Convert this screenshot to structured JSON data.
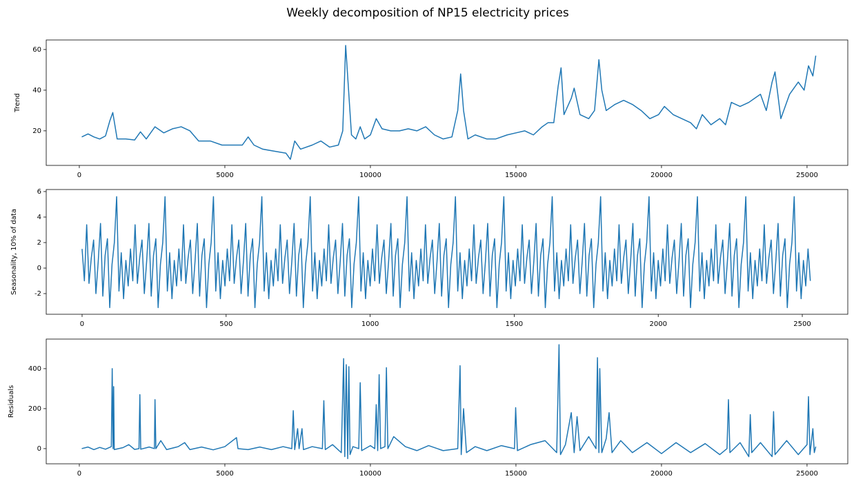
{
  "title": "Weekly decomposition of NP15 electricity prices",
  "chart_data": [
    {
      "type": "line",
      "ylabel": "Trend",
      "color": "#1f77b4",
      "xlim": [
        -1137,
        26400
      ],
      "ylim": [
        3,
        64.7
      ],
      "xticks": [
        0,
        5000,
        10000,
        15000,
        20000,
        25000
      ],
      "yticks": [
        20,
        40,
        60
      ],
      "x": [
        84,
        300,
        500,
        700,
        900,
        1050,
        1150,
        1300,
        1600,
        1900,
        2100,
        2300,
        2600,
        2900,
        3200,
        3500,
        3800,
        4100,
        4500,
        4900,
        5300,
        5600,
        5800,
        6000,
        6300,
        6700,
        7100,
        7250,
        7400,
        7600,
        8000,
        8300,
        8600,
        8900,
        9050,
        9150,
        9250,
        9350,
        9500,
        9650,
        9800,
        10000,
        10200,
        10400,
        10700,
        11000,
        11300,
        11600,
        11900,
        12200,
        12500,
        12800,
        13000,
        13100,
        13200,
        13350,
        13600,
        14000,
        14300,
        14700,
        15000,
        15300,
        15600,
        15900,
        16100,
        16300,
        16450,
        16550,
        16650,
        16900,
        17000,
        17200,
        17500,
        17700,
        17850,
        17950,
        18100,
        18400,
        18700,
        19000,
        19300,
        19600,
        19900,
        20100,
        20400,
        20700,
        21000,
        21200,
        21400,
        21700,
        22000,
        22200,
        22400,
        22700,
        23000,
        23200,
        23400,
        23600,
        23800,
        23900,
        24100,
        24400,
        24700,
        24900,
        25050,
        25200,
        25300
      ],
      "values": [
        17,
        18.5,
        17,
        16,
        17.5,
        25,
        29,
        16,
        16,
        15.5,
        19.5,
        16,
        22,
        19,
        21,
        22,
        20,
        15,
        15,
        13,
        13,
        13,
        17,
        13,
        11,
        10,
        9,
        6,
        15,
        11,
        13,
        15,
        12,
        13,
        20,
        62,
        40,
        18,
        16,
        22,
        16,
        18,
        26,
        21,
        20,
        20,
        21,
        20,
        22,
        18,
        16,
        17,
        30,
        48,
        30,
        16,
        18,
        16,
        16,
        18,
        19,
        20,
        18,
        22,
        24,
        24,
        42,
        51,
        28,
        36,
        41,
        28,
        26,
        30,
        55,
        40,
        30,
        33,
        35,
        33,
        30,
        26,
        28,
        32,
        28,
        26,
        24,
        21,
        28,
        23,
        26,
        23,
        34,
        32,
        34,
        36,
        38,
        30,
        44,
        49,
        26,
        38,
        44,
        40,
        52,
        47,
        57
      ]
    },
    {
      "type": "line",
      "ylabel": "Seasonality, 10% of data",
      "color": "#1f77b4",
      "xlim": [
        -124.5,
        2658
      ],
      "ylim": [
        -3.62,
        6.16
      ],
      "xticks": [
        0,
        500,
        1000,
        1500,
        2000,
        2500
      ],
      "yticks": [
        -2,
        0,
        2,
        4,
        6
      ],
      "x": [
        0,
        8,
        16,
        24,
        32,
        40,
        48,
        56,
        64,
        72,
        80,
        88,
        96,
        104,
        112,
        120,
        128,
        136,
        144,
        152,
        160,
        168,
        176,
        184,
        192,
        200,
        208,
        216,
        224,
        232,
        240,
        248,
        256,
        264,
        272,
        280,
        288,
        296,
        304,
        312,
        320,
        328,
        336,
        344,
        352,
        360,
        368,
        376,
        384,
        392,
        400,
        408,
        416,
        424,
        432,
        440,
        448,
        456,
        464,
        472,
        480,
        488,
        496,
        504,
        512,
        520,
        528,
        536,
        544,
        552,
        560,
        568,
        576,
        584,
        592,
        600,
        608,
        616,
        624,
        632,
        640,
        648,
        656,
        664,
        672,
        680,
        688,
        696,
        704,
        712,
        720,
        728,
        736,
        744,
        752,
        760,
        768,
        776,
        784,
        792,
        800,
        808,
        816,
        824,
        832,
        840,
        848,
        856,
        864,
        872,
        880,
        888,
        896,
        904,
        912,
        920,
        928,
        936,
        944,
        952,
        960,
        968,
        976,
        984,
        992,
        1000,
        1008,
        1016,
        1024,
        1032,
        1040,
        1048,
        1056,
        1064,
        1072,
        1080,
        1088,
        1096,
        1104,
        1112,
        1120,
        1128,
        1136,
        1144,
        1152,
        1160,
        1168,
        1176,
        1184,
        1192,
        1200,
        1208,
        1216,
        1224,
        1232,
        1240,
        1248,
        1256,
        1264,
        1272,
        1280,
        1288,
        1296,
        1304,
        1312,
        1320,
        1328,
        1336,
        1344,
        1352,
        1360,
        1368,
        1376,
        1384,
        1392,
        1400,
        1408,
        1416,
        1424,
        1432,
        1440,
        1448,
        1456,
        1464,
        1472,
        1480,
        1488,
        1496,
        1504,
        1512,
        1520,
        1528,
        1536,
        1544,
        1552,
        1560,
        1568,
        1576,
        1584,
        1592,
        1600,
        1608,
        1616,
        1624,
        1632,
        1640,
        1648,
        1656,
        1664,
        1672,
        1680,
        1688,
        1696,
        1704,
        1712,
        1720,
        1728,
        1736,
        1744,
        1752,
        1760,
        1768,
        1776,
        1784,
        1792,
        1800,
        1808,
        1816,
        1824,
        1832,
        1840,
        1848,
        1856,
        1864,
        1872,
        1880,
        1888,
        1896,
        1904,
        1912,
        1920,
        1928,
        1936,
        1944,
        1952,
        1960,
        1968,
        1976,
        1984,
        1992,
        2000,
        2008,
        2016,
        2024,
        2032,
        2040,
        2048,
        2056,
        2064,
        2072,
        2080,
        2088,
        2096,
        2104,
        2112,
        2120,
        2128,
        2136,
        2144,
        2152,
        2160,
        2168,
        2176,
        2184,
        2192,
        2200,
        2208,
        2216,
        2224,
        2232,
        2240,
        2248,
        2256,
        2264,
        2272,
        2280,
        2288,
        2296,
        2304,
        2312,
        2320,
        2328,
        2336,
        2344,
        2352,
        2360,
        2368,
        2376,
        2384,
        2392,
        2400,
        2408,
        2416,
        2424,
        2432,
        2440,
        2448,
        2456,
        2464,
        2472,
        2480,
        2488,
        2496,
        2504,
        2512,
        2520,
        2528
      ],
      "values": [
        1.5,
        -1.0,
        3.4,
        -1.2,
        0.8,
        2.2,
        -2.0,
        0.5,
        3.5,
        -2.2,
        1.0,
        2.3,
        -3.1,
        0.3,
        2.0,
        5.6,
        -1.8,
        1.2,
        -2.4,
        0.6,
        -1.4,
        1.5,
        -1.0,
        3.4,
        -1.2,
        0.8,
        2.2,
        -2.0,
        0.5,
        3.5,
        -2.2,
        1.0,
        2.3,
        -3.1,
        0.3,
        2.0,
        5.6,
        -1.8,
        1.2,
        -2.4,
        0.6,
        -1.4,
        1.5,
        -1.0,
        3.4,
        -1.2,
        0.8,
        2.2,
        -2.0,
        0.5,
        3.5,
        -2.2,
        1.0,
        2.3,
        -3.1,
        0.3,
        2.0,
        5.6,
        -1.8,
        1.2,
        -2.4,
        0.6,
        -1.4,
        1.5,
        -1.0,
        3.4,
        -1.2,
        0.8,
        2.2,
        -2.0,
        0.5,
        3.5,
        -2.2,
        1.0,
        2.3,
        -3.1,
        0.3,
        2.0,
        5.6,
        -1.8,
        1.2,
        -2.4,
        0.6,
        -1.4,
        1.5,
        -1.0,
        3.4,
        -1.2,
        0.8,
        2.2,
        -2.0,
        0.5,
        3.5,
        -2.2,
        1.0,
        2.3,
        -3.1,
        0.3,
        2.0,
        5.6,
        -1.8,
        1.2,
        -2.4,
        0.6,
        -1.4,
        1.5,
        -1.0,
        3.4,
        -1.2,
        0.8,
        2.2,
        -2.0,
        0.5,
        3.5,
        -2.2,
        1.0,
        2.3,
        -3.1,
        0.3,
        2.0,
        5.6,
        -1.8,
        1.2,
        -2.4,
        0.6,
        -1.4,
        1.5,
        -1.0,
        3.4,
        -1.2,
        0.8,
        2.2,
        -2.0,
        0.5,
        3.5,
        -2.2,
        1.0,
        2.3,
        -3.1,
        0.3,
        2.0,
        5.6,
        -1.8,
        1.2,
        -2.4,
        0.6,
        -1.4,
        1.5,
        -1.0,
        3.4,
        -1.2,
        0.8,
        2.2,
        -2.0,
        0.5,
        3.5,
        -2.2,
        1.0,
        2.3,
        -3.1,
        0.3,
        2.0,
        5.6,
        -1.8,
        1.2,
        -2.4,
        0.6,
        -1.4,
        1.5,
        -1.0,
        3.4,
        -1.2,
        0.8,
        2.2,
        -2.0,
        0.5,
        3.5,
        -2.2,
        1.0,
        2.3,
        -3.1,
        0.3,
        2.0,
        5.6,
        -1.8,
        1.2,
        -2.4,
        0.6,
        -1.4,
        1.5,
        -1.0,
        3.4,
        -1.2,
        0.8,
        2.2,
        -2.0,
        0.5,
        3.5,
        -2.2,
        1.0,
        2.3,
        -3.1,
        0.3,
        2.0,
        5.6,
        -1.8,
        1.2,
        -2.4,
        0.6,
        -1.4,
        1.5,
        -1.0,
        3.4,
        -1.2,
        0.8,
        2.2,
        -2.0,
        0.5,
        3.5,
        -2.2,
        1.0,
        2.3,
        -3.1,
        0.3,
        2.0,
        5.6,
        -1.8,
        1.2,
        -2.4,
        0.6,
        -1.4,
        1.5,
        -1.0,
        3.4,
        -1.2,
        0.8,
        2.2,
        -2.0,
        0.5,
        3.5,
        -2.2,
        1.0,
        2.3,
        -3.1,
        0.3,
        2.0,
        5.6,
        -1.8,
        1.2,
        -2.4,
        0.6,
        -1.4,
        1.5,
        -1.0,
        3.4,
        -1.2,
        0.8,
        2.2,
        -2.0,
        0.5,
        3.5,
        -2.2,
        1.0,
        2.3,
        -3.1,
        0.3,
        2.0,
        5.6,
        -1.8,
        1.2,
        -2.4,
        0.6,
        -1.4,
        1.5,
        -1.0,
        3.4,
        -1.2,
        0.8,
        2.2,
        -2.0,
        0.5,
        3.5,
        -2.2,
        1.0,
        2.3,
        -3.1,
        0.3,
        2.0,
        5.6,
        -1.8,
        1.2,
        -2.4,
        0.6,
        -1.4,
        1.5,
        -1.0,
        3.4,
        -1.2,
        0.8,
        2.2,
        -2.0,
        0.5,
        3.5,
        -2.2,
        1.0,
        2.3,
        -3.1,
        0.3,
        2.0,
        5.6,
        -1.8,
        1.2,
        -2.4,
        0.6,
        -1.4,
        1.5,
        -1.0
      ]
    },
    {
      "type": "line",
      "ylabel": "Residuals",
      "color": "#1f77b4",
      "xlim": [
        -1137,
        26400
      ],
      "ylim": [
        -76,
        548
      ],
      "xticks": [
        0,
        5000,
        10000,
        15000,
        20000,
        25000
      ],
      "yticks": [
        0,
        200,
        400
      ],
      "x": [
        84,
        300,
        500,
        700,
        900,
        1100,
        1130,
        1160,
        1180,
        1200,
        1500,
        1700,
        1900,
        2050,
        2080,
        2110,
        2400,
        2580,
        2600,
        2630,
        2800,
        3000,
        3400,
        3620,
        3800,
        4200,
        4600,
        5000,
        5400,
        5450,
        5800,
        6200,
        6600,
        7000,
        7300,
        7350,
        7400,
        7500,
        7550,
        7650,
        7700,
        8000,
        8350,
        8400,
        8450,
        8700,
        9000,
        9080,
        9120,
        9170,
        9220,
        9260,
        9300,
        9400,
        9600,
        9650,
        9700,
        10000,
        10150,
        10200,
        10250,
        10300,
        10350,
        10500,
        10550,
        10600,
        10800,
        11200,
        11600,
        12000,
        12500,
        13000,
        13080,
        13120,
        13200,
        13300,
        13600,
        14000,
        14500,
        14950,
        14990,
        15050,
        15500,
        16000,
        16400,
        16480,
        16530,
        16700,
        16900,
        17000,
        17100,
        17200,
        17500,
        17750,
        17800,
        17850,
        17880,
        17950,
        18100,
        18200,
        18300,
        18600,
        19000,
        19500,
        20000,
        20500,
        21000,
        21500,
        22000,
        22250,
        22300,
        22350,
        22700,
        23000,
        23050,
        23100,
        23400,
        23800,
        23850,
        23900,
        24300,
        24700,
        25000,
        25050,
        25100,
        25200,
        25250,
        25300
      ],
      "values": [
        0,
        8,
        -5,
        6,
        -3,
        10,
        400,
        0,
        310,
        -5,
        5,
        20,
        -4,
        0,
        270,
        -3,
        8,
        0,
        245,
        0,
        40,
        -5,
        10,
        30,
        -5,
        8,
        -6,
        10,
        55,
        0,
        -5,
        8,
        -5,
        10,
        0,
        190,
        -5,
        100,
        0,
        100,
        -5,
        10,
        0,
        240,
        -5,
        20,
        -20,
        450,
        -40,
        420,
        -50,
        410,
        -30,
        10,
        0,
        330,
        -10,
        15,
        0,
        220,
        -10,
        370,
        0,
        10,
        405,
        0,
        60,
        10,
        -10,
        15,
        -10,
        0,
        415,
        -30,
        200,
        -20,
        10,
        -10,
        15,
        0,
        205,
        -10,
        20,
        40,
        -20,
        520,
        -30,
        20,
        180,
        -20,
        160,
        -10,
        60,
        0,
        455,
        -20,
        400,
        -20,
        50,
        180,
        -20,
        40,
        -20,
        30,
        -25,
        30,
        -20,
        25,
        -30,
        0,
        245,
        -20,
        30,
        -40,
        170,
        -20,
        30,
        -40,
        185,
        -30,
        40,
        -30,
        20,
        260,
        -30,
        100,
        -20,
        10
      ]
    }
  ]
}
